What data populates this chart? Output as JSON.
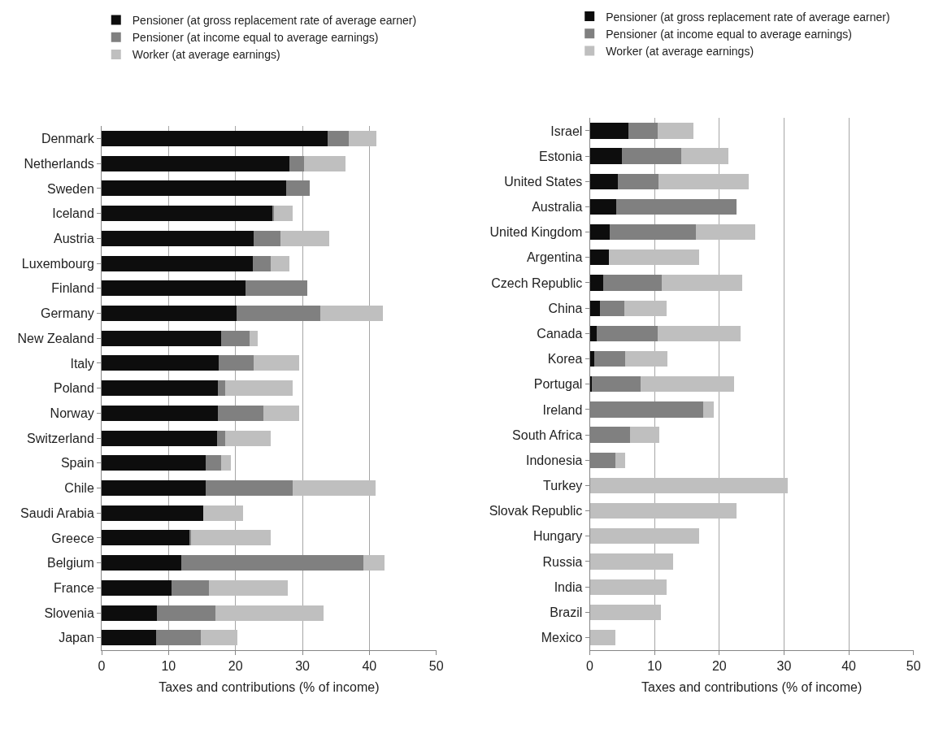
{
  "chart_data": [
    {
      "type": "bar",
      "orientation": "horizontal",
      "stacked": true,
      "xlabel": "Taxes and contributions (% of income)",
      "categories": [
        "Denmark",
        "Netherlands",
        "Sweden",
        "Iceland",
        "Austria",
        "Luxembourg",
        "Finland",
        "Germany",
        "New Zealand",
        "Italy",
        "Poland",
        "Norway",
        "Switzerland",
        "Spain",
        "Chile",
        "Saudi Arabia",
        "Greece",
        "Belgium",
        "France",
        "Slovenia",
        "Japan"
      ],
      "series": [
        {
          "name": "Pensioner (at gross replacement rate of average earner)",
          "color": "#0d0d0d",
          "values": [
            33.8,
            28.0,
            27.6,
            25.5,
            22.7,
            22.6,
            21.5,
            20.2,
            17.9,
            17.5,
            17.4,
            17.4,
            17.2,
            15.6,
            15.5,
            15.2,
            13.2,
            11.9,
            10.5,
            8.3,
            8.1
          ]
        },
        {
          "name": "Pensioner (at income equal to average earnings)",
          "color": "#808080",
          "values": [
            3.1,
            2.3,
            3.5,
            0.3,
            4.0,
            2.6,
            9.2,
            12.5,
            4.2,
            5.2,
            1.1,
            6.8,
            1.3,
            2.3,
            13.1,
            0,
            0.2,
            27.2,
            5.5,
            8.7,
            6.7
          ]
        },
        {
          "name": "Worker (at average earnings)",
          "color": "#bfbfbf",
          "values": [
            4.2,
            6.1,
            0,
            2.7,
            7.3,
            2.8,
            0,
            9.3,
            1.2,
            6.8,
            10.1,
            5.3,
            6.7,
            1.4,
            12.3,
            5.9,
            11.8,
            3.2,
            11.8,
            16.2,
            5.5
          ]
        }
      ],
      "xlim": [
        0,
        50
      ],
      "xticks": [
        0,
        10,
        20,
        30,
        40,
        50
      ],
      "grid": "x",
      "legend": "top"
    },
    {
      "type": "bar",
      "orientation": "horizontal",
      "stacked": true,
      "xlabel": "Taxes and contributions (% of income)",
      "categories": [
        "Israel",
        "Estonia",
        "United States",
        "Australia",
        "United Kingdom",
        "Argentina",
        "Czech Republic",
        "China",
        "Canada",
        "Korea",
        "Portugal",
        "Ireland",
        "South Africa",
        "Indonesia",
        "Turkey",
        "Slovak Republic",
        "Hungary",
        "Russia",
        "India",
        "Brazil",
        "Mexico"
      ],
      "series": [
        {
          "name": "Pensioner (at gross replacement rate of average earner)",
          "color": "#0d0d0d",
          "values": [
            5.9,
            4.9,
            4.3,
            4.1,
            3.1,
            2.9,
            2.1,
            1.6,
            1.1,
            0.7,
            0.3,
            0,
            0,
            0,
            0,
            0,
            0,
            0,
            0,
            0,
            0
          ]
        },
        {
          "name": "Pensioner (at income equal to average earnings)",
          "color": "#808080",
          "values": [
            4.6,
            9.2,
            6.3,
            18.5,
            13.3,
            0,
            9.0,
            3.7,
            9.4,
            4.7,
            7.5,
            17.5,
            6.2,
            3.9,
            0,
            0,
            0,
            0,
            0,
            0,
            0
          ]
        },
        {
          "name": "Worker (at average earnings)",
          "color": "#bfbfbf",
          "values": [
            5.5,
            7.3,
            13.9,
            0,
            9.2,
            14.0,
            12.5,
            6.5,
            12.8,
            6.6,
            14.5,
            1.6,
            4.5,
            1.5,
            30.6,
            22.7,
            16.9,
            12.9,
            11.8,
            11.0,
            4.0
          ]
        }
      ],
      "xlim": [
        0,
        50
      ],
      "xticks": [
        0,
        10,
        20,
        30,
        40,
        50
      ],
      "grid": "x",
      "legend": "top"
    }
  ]
}
